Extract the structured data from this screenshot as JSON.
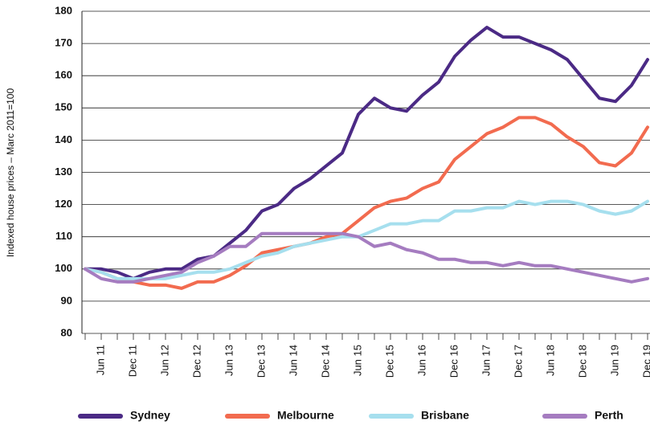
{
  "chart_data": {
    "type": "line",
    "y_label": "Indexed house prices – Marc 2011=100",
    "categories": [
      null,
      "Jun 11",
      null,
      "Dec 11",
      null,
      "Jun 12",
      null,
      "Dec 12",
      null,
      "Jun 13",
      null,
      "Dec 13",
      null,
      "Jun 14",
      null,
      "Dec 14",
      null,
      "Jun 15",
      null,
      "Dec 15",
      null,
      "Jun 16",
      null,
      "Dec 16",
      null,
      "Jun 17",
      null,
      "Dec 17",
      null,
      "Jun 18",
      null,
      "Dec 18",
      null,
      "Jun 19",
      null,
      "Dec 19"
    ],
    "series": [
      {
        "name": "Sydney",
        "color": "#4b2a85",
        "values": [
          100,
          100,
          99,
          97,
          99,
          100,
          100,
          103,
          104,
          108,
          112,
          118,
          120,
          125,
          128,
          132,
          136,
          148,
          153,
          150,
          149,
          154,
          158,
          166,
          171,
          175,
          172,
          172,
          170,
          168,
          165,
          159,
          153,
          152,
          157,
          165
        ]
      },
      {
        "name": "Melbourne",
        "color": "#f26b4f",
        "values": [
          100,
          99,
          97,
          96,
          95,
          95,
          94,
          96,
          96,
          98,
          101,
          105,
          106,
          107,
          108,
          110,
          111,
          115,
          119,
          121,
          122,
          125,
          127,
          134,
          138,
          142,
          144,
          147,
          147,
          145,
          141,
          138,
          133,
          132,
          136,
          144
        ]
      },
      {
        "name": "Brisbane",
        "color": "#a6dfee",
        "values": [
          100,
          99,
          97,
          97,
          97,
          97,
          98,
          99,
          99,
          100,
          102,
          104,
          105,
          107,
          108,
          109,
          110,
          110,
          112,
          114,
          114,
          115,
          115,
          118,
          118,
          119,
          119,
          121,
          120,
          121,
          121,
          120,
          118,
          117,
          118,
          121
        ]
      },
      {
        "name": "Perth",
        "color": "#a57cc0",
        "values": [
          100,
          97,
          96,
          96,
          97,
          98,
          99,
          102,
          104,
          107,
          107,
          111,
          111,
          111,
          111,
          111,
          111,
          110,
          107,
          108,
          106,
          105,
          103,
          103,
          102,
          102,
          101,
          102,
          101,
          101,
          100,
          99,
          98,
          97,
          96,
          97
        ]
      }
    ],
    "ylim": [
      80,
      180
    ],
    "yticks": [
      80,
      90,
      100,
      110,
      120,
      130,
      140,
      150,
      160,
      170,
      180
    ],
    "grid": true,
    "legend": "bottom"
  }
}
